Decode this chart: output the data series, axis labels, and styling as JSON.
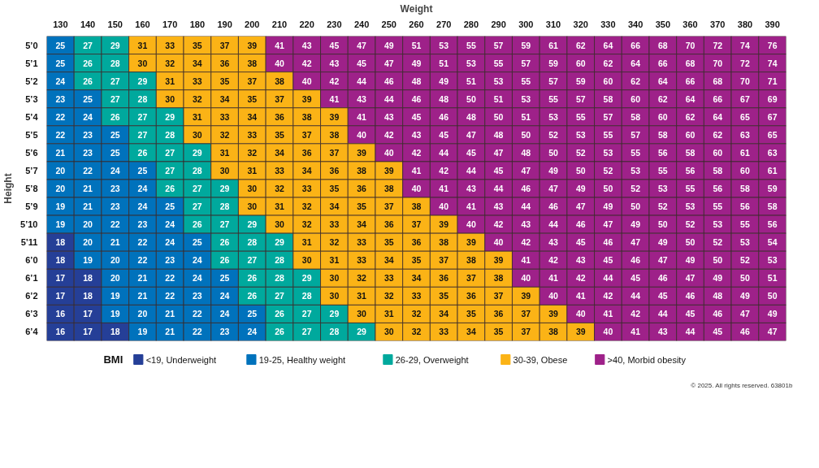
{
  "chart_data": [
    {
      "type": "heatmap",
      "xlabel": "Weight",
      "ylabel": "Height",
      "data_labels": true,
      "categories": [
        "130",
        "140",
        "150",
        "160",
        "170",
        "180",
        "190",
        "200",
        "210",
        "220",
        "230",
        "240",
        "250",
        "260",
        "270",
        "280",
        "290",
        "300",
        "310",
        "320",
        "330",
        "340",
        "350",
        "360",
        "370",
        "380",
        "390"
      ],
      "y_categories": [
        "5’0",
        "5’1",
        "5’2",
        "5’3",
        "5’4",
        "5’5",
        "5’6",
        "5’7",
        "5’8",
        "5’9",
        "5’10",
        "5’11",
        "6’0",
        "6’1",
        "6’2",
        "6’3",
        "6’4"
      ],
      "cells": [
        [
          25,
          27,
          29,
          31,
          33,
          35,
          37,
          39,
          41,
          43,
          45,
          47,
          49,
          51,
          53,
          55,
          57,
          59,
          61,
          62,
          64,
          66,
          68,
          70,
          72,
          74,
          76
        ],
        [
          25,
          26,
          28,
          30,
          32,
          34,
          36,
          38,
          40,
          42,
          43,
          45,
          47,
          49,
          51,
          53,
          55,
          57,
          59,
          60,
          62,
          64,
          66,
          68,
          70,
          72,
          74
        ],
        [
          24,
          26,
          27,
          29,
          31,
          33,
          35,
          37,
          38,
          40,
          42,
          44,
          46,
          48,
          49,
          51,
          53,
          55,
          57,
          59,
          60,
          62,
          64,
          66,
          68,
          70,
          71
        ],
        [
          23,
          25,
          27,
          28,
          30,
          32,
          34,
          35,
          37,
          39,
          41,
          43,
          44,
          46,
          48,
          50,
          51,
          53,
          55,
          57,
          58,
          60,
          62,
          64,
          66,
          67,
          69
        ],
        [
          22,
          24,
          26,
          27,
          29,
          31,
          33,
          34,
          36,
          38,
          39,
          41,
          43,
          45,
          46,
          48,
          50,
          51,
          53,
          55,
          57,
          58,
          60,
          62,
          64,
          65,
          67
        ],
        [
          22,
          23,
          25,
          27,
          28,
          30,
          32,
          33,
          35,
          37,
          38,
          40,
          42,
          43,
          45,
          47,
          48,
          50,
          52,
          53,
          55,
          57,
          58,
          60,
          62,
          63,
          65
        ],
        [
          21,
          23,
          25,
          26,
          27,
          29,
          31,
          32,
          34,
          36,
          37,
          39,
          40,
          42,
          44,
          45,
          47,
          48,
          50,
          52,
          53,
          55,
          56,
          58,
          60,
          61,
          63
        ],
        [
          20,
          22,
          24,
          25,
          27,
          28,
          30,
          31,
          33,
          34,
          36,
          38,
          39,
          41,
          42,
          44,
          45,
          47,
          49,
          50,
          52,
          53,
          55,
          56,
          58,
          60,
          61
        ],
        [
          20,
          21,
          23,
          24,
          26,
          27,
          29,
          30,
          32,
          33,
          35,
          36,
          38,
          40,
          41,
          43,
          44,
          46,
          47,
          49,
          50,
          52,
          53,
          55,
          56,
          58,
          59
        ],
        [
          19,
          21,
          23,
          24,
          25,
          27,
          28,
          30,
          31,
          32,
          34,
          35,
          37,
          38,
          40,
          41,
          43,
          44,
          46,
          47,
          49,
          50,
          52,
          53,
          55,
          56,
          58
        ],
        [
          19,
          20,
          22,
          23,
          24,
          26,
          27,
          29,
          30,
          32,
          33,
          34,
          36,
          37,
          39,
          40,
          42,
          43,
          44,
          46,
          47,
          49,
          50,
          52,
          53,
          55,
          56
        ],
        [
          18,
          20,
          21,
          22,
          24,
          25,
          26,
          28,
          29,
          31,
          32,
          33,
          35,
          36,
          38,
          39,
          40,
          42,
          43,
          45,
          46,
          47,
          49,
          50,
          52,
          53,
          54
        ],
        [
          18,
          19,
          20,
          22,
          23,
          24,
          26,
          27,
          28,
          30,
          31,
          33,
          34,
          35,
          37,
          38,
          39,
          41,
          42,
          43,
          45,
          46,
          47,
          49,
          50,
          52,
          53
        ],
        [
          17,
          18,
          20,
          21,
          22,
          24,
          25,
          26,
          28,
          29,
          30,
          32,
          33,
          34,
          36,
          37,
          38,
          40,
          41,
          42,
          44,
          45,
          46,
          47,
          49,
          50,
          51
        ],
        [
          17,
          18,
          19,
          21,
          22,
          23,
          24,
          26,
          27,
          28,
          30,
          31,
          32,
          33,
          35,
          36,
          37,
          39,
          40,
          41,
          42,
          44,
          45,
          46,
          48,
          49,
          50
        ],
        [
          16,
          17,
          19,
          20,
          21,
          22,
          24,
          25,
          26,
          27,
          29,
          30,
          31,
          32,
          34,
          35,
          36,
          37,
          39,
          40,
          41,
          42,
          44,
          45,
          46,
          47,
          49
        ],
        [
          16,
          17,
          18,
          19,
          21,
          22,
          23,
          24,
          26,
          27,
          28,
          29,
          30,
          32,
          33,
          34,
          35,
          37,
          38,
          39,
          40,
          41,
          43,
          44,
          45,
          46,
          47
        ]
      ],
      "colors": [
        [
          "#0072bc",
          "#00a99d",
          "#00a99d",
          "#fbb316",
          "#fbb316",
          "#fbb316",
          "#fbb316",
          "#fbb316",
          "#9e2189",
          "#9e2189",
          "#9e2189",
          "#9e2189",
          "#9e2189",
          "#9e2189",
          "#9e2189",
          "#9e2189",
          "#9e2189",
          "#9e2189",
          "#9e2189",
          "#9e2189",
          "#9e2189",
          "#9e2189",
          "#9e2189",
          "#9e2189",
          "#9e2189",
          "#9e2189",
          "#9e2189"
        ],
        [
          "#0072bc",
          "#00a99d",
          "#00a99d",
          "#fbb316",
          "#fbb316",
          "#fbb316",
          "#fbb316",
          "#fbb316",
          "#9e2189",
          "#9e2189",
          "#9e2189",
          "#9e2189",
          "#9e2189",
          "#9e2189",
          "#9e2189",
          "#9e2189",
          "#9e2189",
          "#9e2189",
          "#9e2189",
          "#9e2189",
          "#9e2189",
          "#9e2189",
          "#9e2189",
          "#9e2189",
          "#9e2189",
          "#9e2189",
          "#9e2189"
        ],
        [
          "#0072bc",
          "#00a99d",
          "#00a99d",
          "#00a99d",
          "#fbb316",
          "#fbb316",
          "#fbb316",
          "#fbb316",
          "#fbb316",
          "#9e2189",
          "#9e2189",
          "#9e2189",
          "#9e2189",
          "#9e2189",
          "#9e2189",
          "#9e2189",
          "#9e2189",
          "#9e2189",
          "#9e2189",
          "#9e2189",
          "#9e2189",
          "#9e2189",
          "#9e2189",
          "#9e2189",
          "#9e2189",
          "#9e2189",
          "#9e2189"
        ],
        [
          "#0072bc",
          "#0072bc",
          "#00a99d",
          "#00a99d",
          "#fbb316",
          "#fbb316",
          "#fbb316",
          "#fbb316",
          "#fbb316",
          "#fbb316",
          "#9e2189",
          "#9e2189",
          "#9e2189",
          "#9e2189",
          "#9e2189",
          "#9e2189",
          "#9e2189",
          "#9e2189",
          "#9e2189",
          "#9e2189",
          "#9e2189",
          "#9e2189",
          "#9e2189",
          "#9e2189",
          "#9e2189",
          "#9e2189",
          "#9e2189"
        ],
        [
          "#0072bc",
          "#0072bc",
          "#00a99d",
          "#00a99d",
          "#00a99d",
          "#fbb316",
          "#fbb316",
          "#fbb316",
          "#fbb316",
          "#fbb316",
          "#fbb316",
          "#9e2189",
          "#9e2189",
          "#9e2189",
          "#9e2189",
          "#9e2189",
          "#9e2189",
          "#9e2189",
          "#9e2189",
          "#9e2189",
          "#9e2189",
          "#9e2189",
          "#9e2189",
          "#9e2189",
          "#9e2189",
          "#9e2189",
          "#9e2189"
        ],
        [
          "#0072bc",
          "#0072bc",
          "#0072bc",
          "#00a99d",
          "#00a99d",
          "#fbb316",
          "#fbb316",
          "#fbb316",
          "#fbb316",
          "#fbb316",
          "#fbb316",
          "#9e2189",
          "#9e2189",
          "#9e2189",
          "#9e2189",
          "#9e2189",
          "#9e2189",
          "#9e2189",
          "#9e2189",
          "#9e2189",
          "#9e2189",
          "#9e2189",
          "#9e2189",
          "#9e2189",
          "#9e2189",
          "#9e2189",
          "#9e2189"
        ],
        [
          "#0072bc",
          "#0072bc",
          "#0072bc",
          "#00a99d",
          "#00a99d",
          "#00a99d",
          "#fbb316",
          "#fbb316",
          "#fbb316",
          "#fbb316",
          "#fbb316",
          "#fbb316",
          "#9e2189",
          "#9e2189",
          "#9e2189",
          "#9e2189",
          "#9e2189",
          "#9e2189",
          "#9e2189",
          "#9e2189",
          "#9e2189",
          "#9e2189",
          "#9e2189",
          "#9e2189",
          "#9e2189",
          "#9e2189",
          "#9e2189"
        ],
        [
          "#0072bc",
          "#0072bc",
          "#0072bc",
          "#0072bc",
          "#00a99d",
          "#00a99d",
          "#fbb316",
          "#fbb316",
          "#fbb316",
          "#fbb316",
          "#fbb316",
          "#fbb316",
          "#fbb316",
          "#9e2189",
          "#9e2189",
          "#9e2189",
          "#9e2189",
          "#9e2189",
          "#9e2189",
          "#9e2189",
          "#9e2189",
          "#9e2189",
          "#9e2189",
          "#9e2189",
          "#9e2189",
          "#9e2189",
          "#9e2189"
        ],
        [
          "#0072bc",
          "#0072bc",
          "#0072bc",
          "#0072bc",
          "#00a99d",
          "#00a99d",
          "#00a99d",
          "#fbb316",
          "#fbb316",
          "#fbb316",
          "#fbb316",
          "#fbb316",
          "#fbb316",
          "#9e2189",
          "#9e2189",
          "#9e2189",
          "#9e2189",
          "#9e2189",
          "#9e2189",
          "#9e2189",
          "#9e2189",
          "#9e2189",
          "#9e2189",
          "#9e2189",
          "#9e2189",
          "#9e2189",
          "#9e2189"
        ],
        [
          "#0072bc",
          "#0072bc",
          "#0072bc",
          "#0072bc",
          "#0072bc",
          "#00a99d",
          "#00a99d",
          "#fbb316",
          "#fbb316",
          "#fbb316",
          "#fbb316",
          "#fbb316",
          "#fbb316",
          "#fbb316",
          "#9e2189",
          "#9e2189",
          "#9e2189",
          "#9e2189",
          "#9e2189",
          "#9e2189",
          "#9e2189",
          "#9e2189",
          "#9e2189",
          "#9e2189",
          "#9e2189",
          "#9e2189",
          "#9e2189"
        ],
        [
          "#0072bc",
          "#0072bc",
          "#0072bc",
          "#0072bc",
          "#0072bc",
          "#00a99d",
          "#00a99d",
          "#00a99d",
          "#fbb316",
          "#fbb316",
          "#fbb316",
          "#fbb316",
          "#fbb316",
          "#fbb316",
          "#fbb316",
          "#9e2189",
          "#9e2189",
          "#9e2189",
          "#9e2189",
          "#9e2189",
          "#9e2189",
          "#9e2189",
          "#9e2189",
          "#9e2189",
          "#9e2189",
          "#9e2189",
          "#9e2189"
        ],
        [
          "#253f97",
          "#0072bc",
          "#0072bc",
          "#0072bc",
          "#0072bc",
          "#0072bc",
          "#00a99d",
          "#00a99d",
          "#00a99d",
          "#fbb316",
          "#fbb316",
          "#fbb316",
          "#fbb316",
          "#fbb316",
          "#fbb316",
          "#fbb316",
          "#9e2189",
          "#9e2189",
          "#9e2189",
          "#9e2189",
          "#9e2189",
          "#9e2189",
          "#9e2189",
          "#9e2189",
          "#9e2189",
          "#9e2189",
          "#9e2189"
        ],
        [
          "#253f97",
          "#0072bc",
          "#0072bc",
          "#0072bc",
          "#0072bc",
          "#0072bc",
          "#00a99d",
          "#00a99d",
          "#00a99d",
          "#fbb316",
          "#fbb316",
          "#fbb316",
          "#fbb316",
          "#fbb316",
          "#fbb316",
          "#fbb316",
          "#fbb316",
          "#9e2189",
          "#9e2189",
          "#9e2189",
          "#9e2189",
          "#9e2189",
          "#9e2189",
          "#9e2189",
          "#9e2189",
          "#9e2189",
          "#9e2189"
        ],
        [
          "#253f97",
          "#253f97",
          "#0072bc",
          "#0072bc",
          "#0072bc",
          "#0072bc",
          "#0072bc",
          "#00a99d",
          "#00a99d",
          "#00a99d",
          "#fbb316",
          "#fbb316",
          "#fbb316",
          "#fbb316",
          "#fbb316",
          "#fbb316",
          "#fbb316",
          "#9e2189",
          "#9e2189",
          "#9e2189",
          "#9e2189",
          "#9e2189",
          "#9e2189",
          "#9e2189",
          "#9e2189",
          "#9e2189",
          "#9e2189"
        ],
        [
          "#253f97",
          "#253f97",
          "#0072bc",
          "#0072bc",
          "#0072bc",
          "#0072bc",
          "#0072bc",
          "#00a99d",
          "#00a99d",
          "#00a99d",
          "#fbb316",
          "#fbb316",
          "#fbb316",
          "#fbb316",
          "#fbb316",
          "#fbb316",
          "#fbb316",
          "#fbb316",
          "#9e2189",
          "#9e2189",
          "#9e2189",
          "#9e2189",
          "#9e2189",
          "#9e2189",
          "#9e2189",
          "#9e2189",
          "#9e2189"
        ],
        [
          "#253f97",
          "#253f97",
          "#0072bc",
          "#0072bc",
          "#0072bc",
          "#0072bc",
          "#0072bc",
          "#0072bc",
          "#00a99d",
          "#00a99d",
          "#00a99d",
          "#fbb316",
          "#fbb316",
          "#fbb316",
          "#fbb316",
          "#fbb316",
          "#fbb316",
          "#fbb316",
          "#fbb316",
          "#9e2189",
          "#9e2189",
          "#9e2189",
          "#9e2189",
          "#9e2189",
          "#9e2189",
          "#9e2189",
          "#9e2189"
        ],
        [
          "#253f97",
          "#253f97",
          "#253f97",
          "#0072bc",
          "#0072bc",
          "#0072bc",
          "#0072bc",
          "#0072bc",
          "#00a99d",
          "#00a99d",
          "#00a99d",
          "#00a99d",
          "#fbb316",
          "#fbb316",
          "#fbb316",
          "#fbb316",
          "#fbb316",
          "#fbb316",
          "#fbb316",
          "#fbb316",
          "#9e2189",
          "#9e2189",
          "#9e2189",
          "#9e2189",
          "#9e2189",
          "#9e2189",
          "#9e2189"
        ]
      ],
      "annotations": [
        "© 2025. All rights reserved. 63801b"
      ]
    },
    {
      "type": "other",
      "legend_title": "BMI",
      "categories": [
        "<19, Underweight",
        "19-25, Healthy weight",
        "26-29, Overweight",
        "30-39, Obese",
        ">40, Morbid obesity"
      ],
      "colors": [
        "#253f97",
        "#0072bc",
        "#00a99d",
        "#fbb316",
        "#9e2189"
      ]
    }
  ]
}
